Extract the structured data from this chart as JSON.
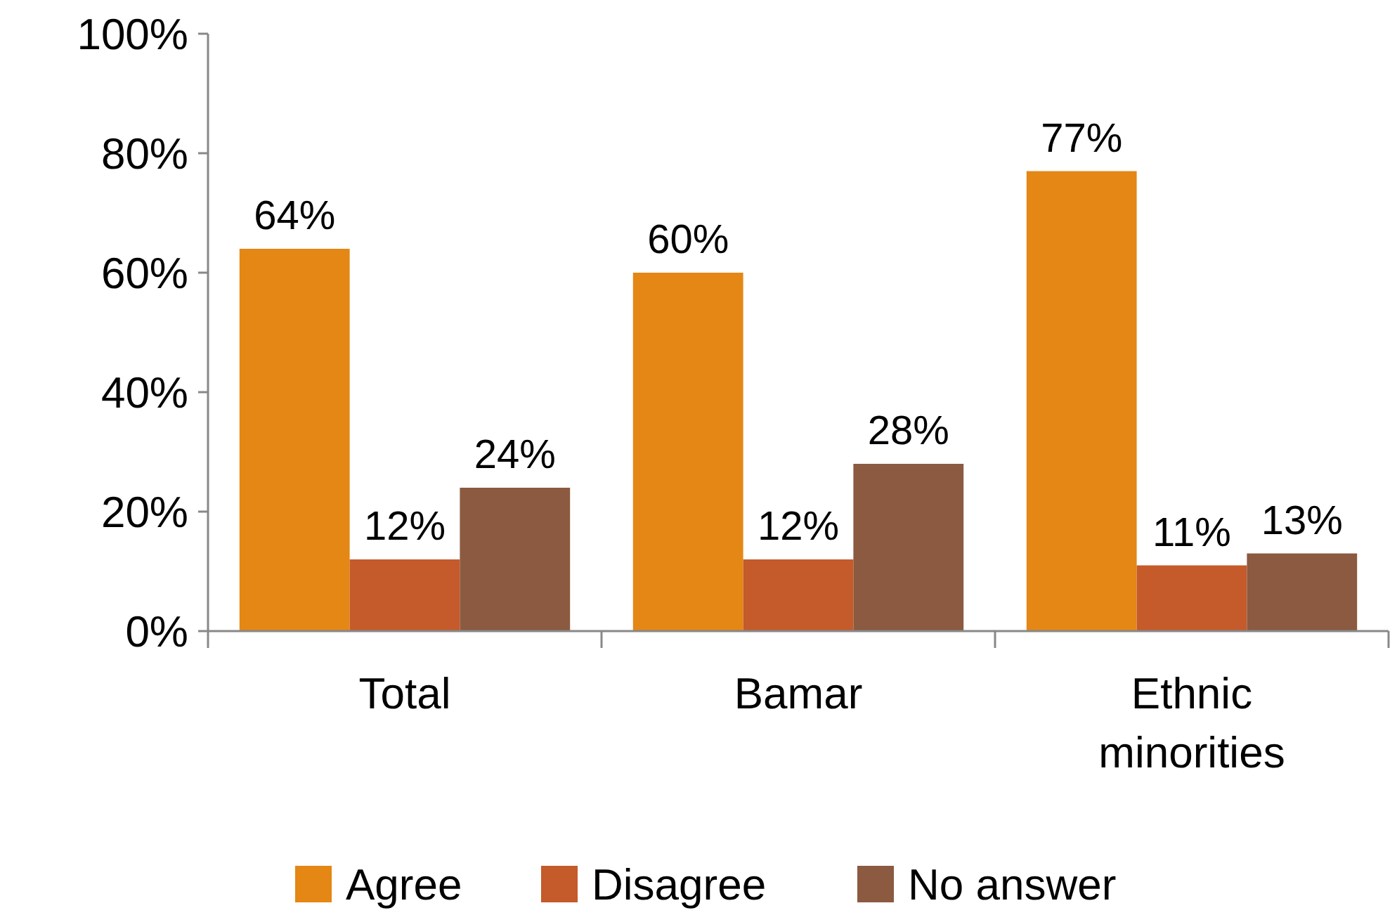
{
  "chart_data": {
    "type": "bar",
    "categories": [
      "Total",
      "Bamar",
      "Ethnic minorities"
    ],
    "series": [
      {
        "name": "Agree",
        "color": "#e48714",
        "values": [
          64,
          60,
          77
        ]
      },
      {
        "name": "Disagree",
        "color": "#c55a2b",
        "values": [
          12,
          12,
          11
        ]
      },
      {
        "name": "No answer",
        "color": "#8b5a40",
        "values": [
          24,
          28,
          13
        ]
      }
    ],
    "ylim": [
      0,
      100
    ],
    "yticks": [
      {
        "value": 0,
        "label": "0%"
      },
      {
        "value": 20,
        "label": "20%"
      },
      {
        "value": 40,
        "label": "40%"
      },
      {
        "value": 60,
        "label": "60%"
      },
      {
        "value": 80,
        "label": "80%"
      },
      {
        "value": 100,
        "label": "100%"
      }
    ],
    "value_labels": [
      [
        "64%",
        "60%",
        "77%"
      ],
      [
        "12%",
        "12%",
        "11%"
      ],
      [
        "24%",
        "28%",
        "13%"
      ]
    ],
    "grid": false,
    "legend": "bottom"
  }
}
